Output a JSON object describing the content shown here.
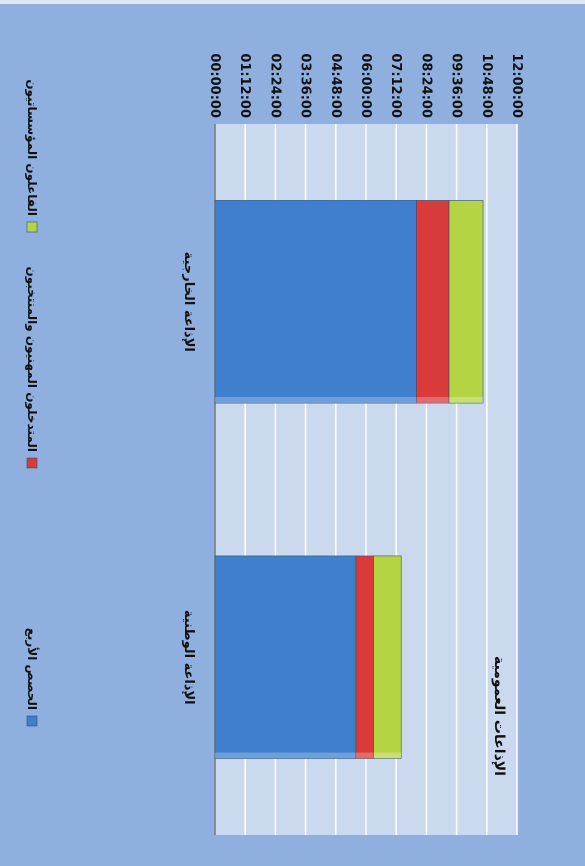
{
  "chart_data": {
    "type": "bar",
    "stacked": true,
    "orientation": "vertical",
    "title": "الإذاعات العمومية",
    "categories": [
      "الإذاعة الخارجية",
      "الإذاعة الوطنية"
    ],
    "series": [
      {
        "name": "الحصص الأربع",
        "color": "#3f7fce",
        "values": [
          8.0,
          5.6
        ]
      },
      {
        "name": "المتدخلون المهنيون والمنتخبون",
        "color": "#d93a3a",
        "values": [
          1.3,
          0.7
        ]
      },
      {
        "name": "الفاعلون المؤسساتيون",
        "color": "#b4d444",
        "values": [
          1.35,
          1.1
        ]
      }
    ],
    "value_unit": "hours",
    "ylim": [
      0,
      12
    ],
    "yticks": [
      "00:00:00",
      "01:12:00",
      "02:24:00",
      "03:36:00",
      "04:48:00",
      "06:00:00",
      "07:12:00",
      "08:24:00",
      "09:36:00",
      "10:48:00",
      "12:00:00"
    ],
    "xlabel": "",
    "ylabel": "",
    "grid": true,
    "legend_position": "bottom",
    "colors": {
      "background": "#8fb0de",
      "plot_area": "#cbd9ef",
      "gridline": "#ffffff"
    }
  }
}
